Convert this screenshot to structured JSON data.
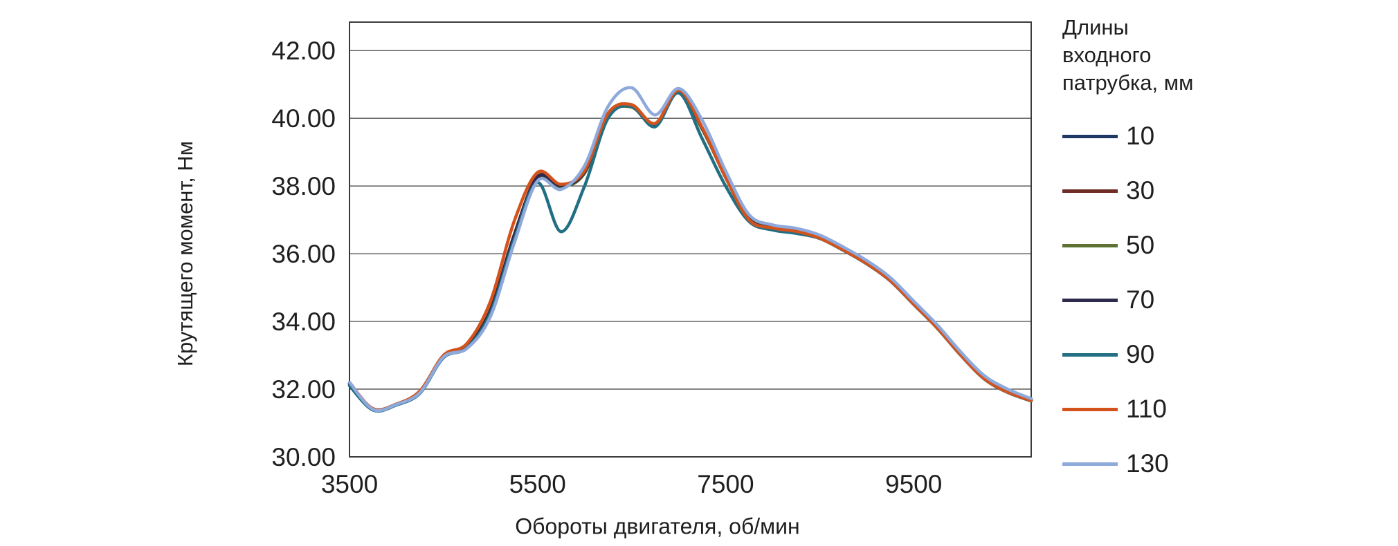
{
  "chart_data": {
    "type": "line",
    "title": "",
    "xlabel": "Обороты двигателя, об/мин",
    "ylabel": "Крутящего момент, Нм",
    "xlim": [
      3500,
      10750
    ],
    "ylim": [
      30,
      42.84
    ],
    "x_ticks": [
      "3500",
      "5500",
      "7500",
      "9500"
    ],
    "y_ticks": [
      "30.00",
      "32.00",
      "34.00",
      "36.00",
      "38.00",
      "40.00",
      "42.00"
    ],
    "grid": "horizontal",
    "legend_position": "right",
    "legend_title": "Длины\nвходного\nпатрубка, мм",
    "x": [
      3500,
      3750,
      4000,
      4250,
      4500,
      4750,
      5000,
      5250,
      5500,
      5750,
      6000,
      6250,
      6500,
      6750,
      7000,
      7250,
      7500,
      7750,
      8000,
      8250,
      8500,
      8750,
      9000,
      9250,
      9500,
      9750,
      10000,
      10250,
      10500,
      10750
    ],
    "series": [
      {
        "name": "10",
        "color": "#1f3864",
        "values": [
          32.15,
          31.4,
          31.55,
          31.9,
          32.95,
          33.25,
          34.3,
          36.5,
          38.25,
          38.0,
          38.4,
          40.1,
          40.35,
          39.8,
          40.8,
          39.7,
          38.3,
          37.05,
          36.8,
          36.7,
          36.5,
          36.15,
          35.75,
          35.25,
          34.55,
          33.85,
          33.05,
          32.35,
          31.95,
          31.7
        ]
      },
      {
        "name": "30",
        "color": "#6e2c24",
        "values": [
          32.17,
          31.42,
          31.56,
          31.92,
          32.97,
          33.27,
          34.35,
          36.55,
          38.28,
          38.02,
          38.42,
          40.12,
          40.38,
          39.82,
          40.82,
          39.72,
          38.25,
          37.03,
          36.78,
          36.68,
          36.48,
          36.13,
          35.73,
          35.23,
          34.53,
          33.83,
          33.03,
          32.33,
          31.93,
          31.68
        ]
      },
      {
        "name": "50",
        "color": "#5d7230",
        "values": [
          32.13,
          31.39,
          31.54,
          31.89,
          32.94,
          33.24,
          34.28,
          36.48,
          38.23,
          37.98,
          38.38,
          40.08,
          40.33,
          39.78,
          40.78,
          39.68,
          38.28,
          37.04,
          36.79,
          36.69,
          36.49,
          36.14,
          35.74,
          35.24,
          34.54,
          33.84,
          33.04,
          32.34,
          31.94,
          31.69
        ]
      },
      {
        "name": "70",
        "color": "#2d2a4d",
        "values": [
          32.16,
          31.41,
          31.55,
          31.91,
          32.96,
          33.26,
          34.32,
          36.52,
          38.26,
          38.01,
          38.41,
          40.11,
          40.36,
          39.81,
          40.81,
          39.71,
          38.27,
          37.02,
          36.77,
          36.67,
          36.47,
          36.12,
          35.72,
          35.22,
          34.52,
          33.82,
          33.02,
          32.32,
          31.92,
          31.67
        ]
      },
      {
        "name": "90",
        "color": "#226f83",
        "values": [
          32.1,
          31.38,
          31.53,
          31.88,
          32.93,
          33.22,
          34.25,
          36.4,
          38.1,
          36.65,
          38.0,
          40.0,
          40.35,
          39.75,
          40.75,
          39.4,
          38.0,
          36.95,
          36.7,
          36.6,
          36.45,
          36.1,
          35.7,
          35.2,
          34.5,
          33.8,
          33.0,
          32.3,
          31.9,
          31.65
        ]
      },
      {
        "name": "110",
        "color": "#d4531c",
        "values": [
          32.2,
          31.42,
          31.56,
          31.95,
          33.0,
          33.35,
          34.6,
          36.95,
          38.4,
          38.05,
          38.45,
          40.15,
          40.4,
          39.85,
          40.83,
          39.73,
          38.26,
          37.0,
          36.76,
          36.66,
          36.46,
          36.11,
          35.71,
          35.21,
          34.51,
          33.81,
          33.01,
          32.31,
          31.91,
          31.66
        ]
      },
      {
        "name": "130",
        "color": "#8ea9db",
        "values": [
          32.2,
          31.4,
          31.55,
          31.9,
          32.95,
          33.2,
          34.15,
          36.3,
          38.15,
          37.9,
          38.6,
          40.35,
          40.9,
          40.1,
          40.88,
          39.95,
          38.45,
          37.15,
          36.85,
          36.75,
          36.55,
          36.2,
          35.8,
          35.3,
          34.6,
          33.9,
          33.1,
          32.4,
          32.0,
          31.72
        ]
      }
    ]
  }
}
